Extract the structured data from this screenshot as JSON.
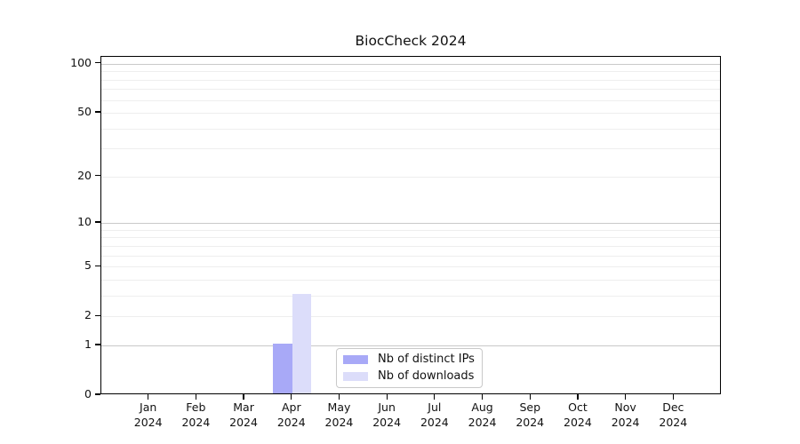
{
  "chart_data": {
    "type": "bar",
    "title": "BiocCheck 2024",
    "categories": [
      "Jan",
      "Feb",
      "Mar",
      "Apr",
      "May",
      "Jun",
      "Jul",
      "Aug",
      "Sep",
      "Oct",
      "Nov",
      "Dec"
    ],
    "category_year": "2024",
    "series": [
      {
        "name": "Nb of distinct IPs",
        "color": "#a8a9f7",
        "values": [
          0,
          0,
          0,
          1,
          0,
          0,
          0,
          0,
          0,
          0,
          0,
          0
        ]
      },
      {
        "name": "Nb of downloads",
        "color": "#dcddfa",
        "values": [
          0,
          0,
          0,
          3,
          0,
          0,
          0,
          0,
          0,
          0,
          0,
          0
        ]
      }
    ],
    "yscale": "log1p",
    "ylim": [
      0,
      100
    ],
    "y_tick_labels": [
      0,
      1,
      2,
      5,
      10,
      20,
      50,
      100
    ],
    "y_major_gridlines": [
      1,
      10,
      100
    ],
    "y_minor_gridlines": [
      2,
      3,
      4,
      5,
      6,
      7,
      8,
      9,
      20,
      30,
      40,
      50,
      60,
      70,
      80,
      90
    ],
    "grid": "horizontal",
    "legend_position": "inside-bottom-center",
    "xlabel": "",
    "ylabel": ""
  },
  "colors": {
    "axis": "#000000",
    "text": "#111111",
    "gridline_major": "#c9c9c9",
    "gridline_minor": "#eeeeee",
    "legend_border": "#c9c9c9",
    "background": "#ffffff"
  }
}
